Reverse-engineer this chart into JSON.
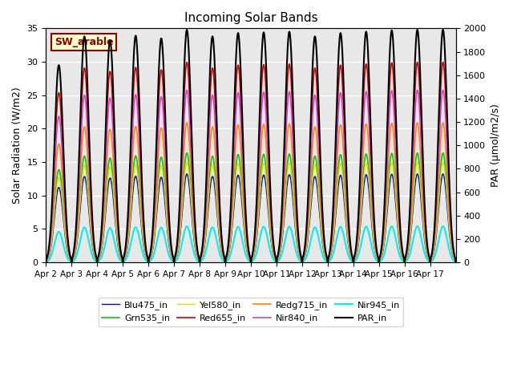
{
  "title": "Incoming Solar Bands",
  "ylabel_left": "Solar Radiation (W/m2)",
  "ylabel_right": "PAR (μmol/m2/s)",
  "ylim_left": [
    0,
    35
  ],
  "ylim_right": [
    0,
    2000
  ],
  "xtick_labels": [
    "Apr 2",
    "Apr 3",
    "Apr 4",
    "Apr 5",
    "Apr 6",
    "Apr 7",
    "Apr 8",
    "Apr 9",
    "Apr 10",
    "Apr 11",
    "Apr 12",
    "Apr 13",
    "Apr 14",
    "Apr 15",
    "Apr 16",
    "Apr 17"
  ],
  "yticks_left": [
    0,
    5,
    10,
    15,
    20,
    25,
    30,
    35
  ],
  "yticks_right": [
    0,
    200,
    400,
    600,
    800,
    1000,
    1200,
    1400,
    1600,
    1800,
    2000
  ],
  "background_color": "#e8e8e8",
  "annotation_text": "SW_arable",
  "annotation_color": "#8B0000",
  "annotation_bg": "#ffffcc",
  "series_names": [
    "Blu475_in",
    "Grn535_in",
    "Yel580_in",
    "Red655_in",
    "Redg715_in",
    "Nir840_in",
    "Nir945_in",
    "PAR_in"
  ],
  "series_colors": [
    "#0000dd",
    "#00cc00",
    "#dddd00",
    "#cc0000",
    "#ff8800",
    "#cc44cc",
    "#00eeee",
    "#000000"
  ],
  "series_lw": [
    1.0,
    1.2,
    1.0,
    1.2,
    1.2,
    1.2,
    1.5,
    1.5
  ],
  "series_scale": [
    0.38,
    0.47,
    0.43,
    0.86,
    0.6,
    0.74,
    0.155,
    1.0
  ],
  "is_par": [
    false,
    false,
    false,
    false,
    false,
    false,
    false,
    true
  ],
  "day_peaks": [
    29.5,
    33.8,
    33.2,
    33.9,
    33.5,
    34.8,
    33.8,
    34.3,
    34.4,
    34.5,
    33.8,
    34.3,
    34.5,
    34.7,
    34.8,
    34.8
  ]
}
